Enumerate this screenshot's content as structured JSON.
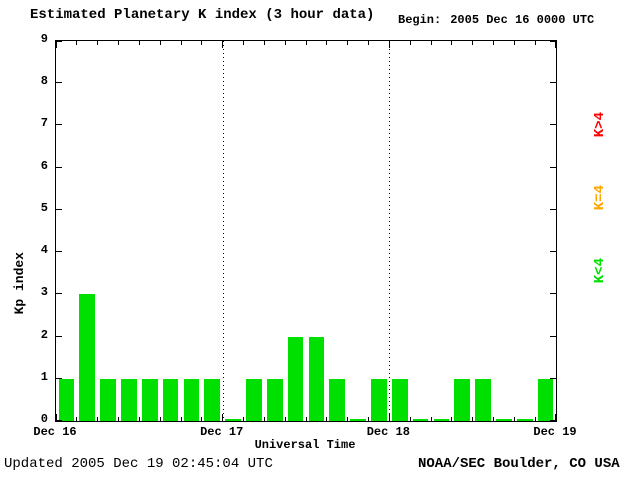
{
  "title": "Estimated Planetary K index (3 hour data)",
  "begin": {
    "label": "Begin:",
    "value": "2005 Dec 16 0000 UTC"
  },
  "footer": {
    "updated": "Updated 2005 Dec 19 02:45:04 UTC",
    "source": "NOAA/SEC Boulder, CO USA"
  },
  "legend": [
    {
      "key": "k-gt-4",
      "label": "K>4",
      "color": "#ff0000"
    },
    {
      "key": "k-eq-4",
      "label": "K=4",
      "color": "#ffa500"
    },
    {
      "key": "k-lt-4",
      "label": "K<4",
      "color": "#00e000"
    }
  ],
  "chart_data": {
    "type": "bar",
    "title": "Estimated Planetary K index (3 hour data)",
    "xlabel": "Universal Time",
    "ylabel": "Kp index",
    "ylim": [
      0,
      9
    ],
    "yticks": [
      0,
      1,
      2,
      3,
      4,
      5,
      6,
      7,
      8,
      9
    ],
    "x_day_labels": [
      "Dec 16",
      "Dec 17",
      "Dec 18",
      "Dec 19"
    ],
    "bars_per_day": 8,
    "interval_hours": 3,
    "bar_color": "#00e000",
    "grid": "dotted vertical day dividers",
    "legend_position": "right",
    "values": [
      1,
      3,
      1,
      1,
      1,
      1,
      1,
      1,
      0,
      1,
      1,
      2,
      2,
      1,
      0,
      1,
      1,
      0,
      0,
      1,
      1,
      0,
      0,
      1
    ]
  }
}
